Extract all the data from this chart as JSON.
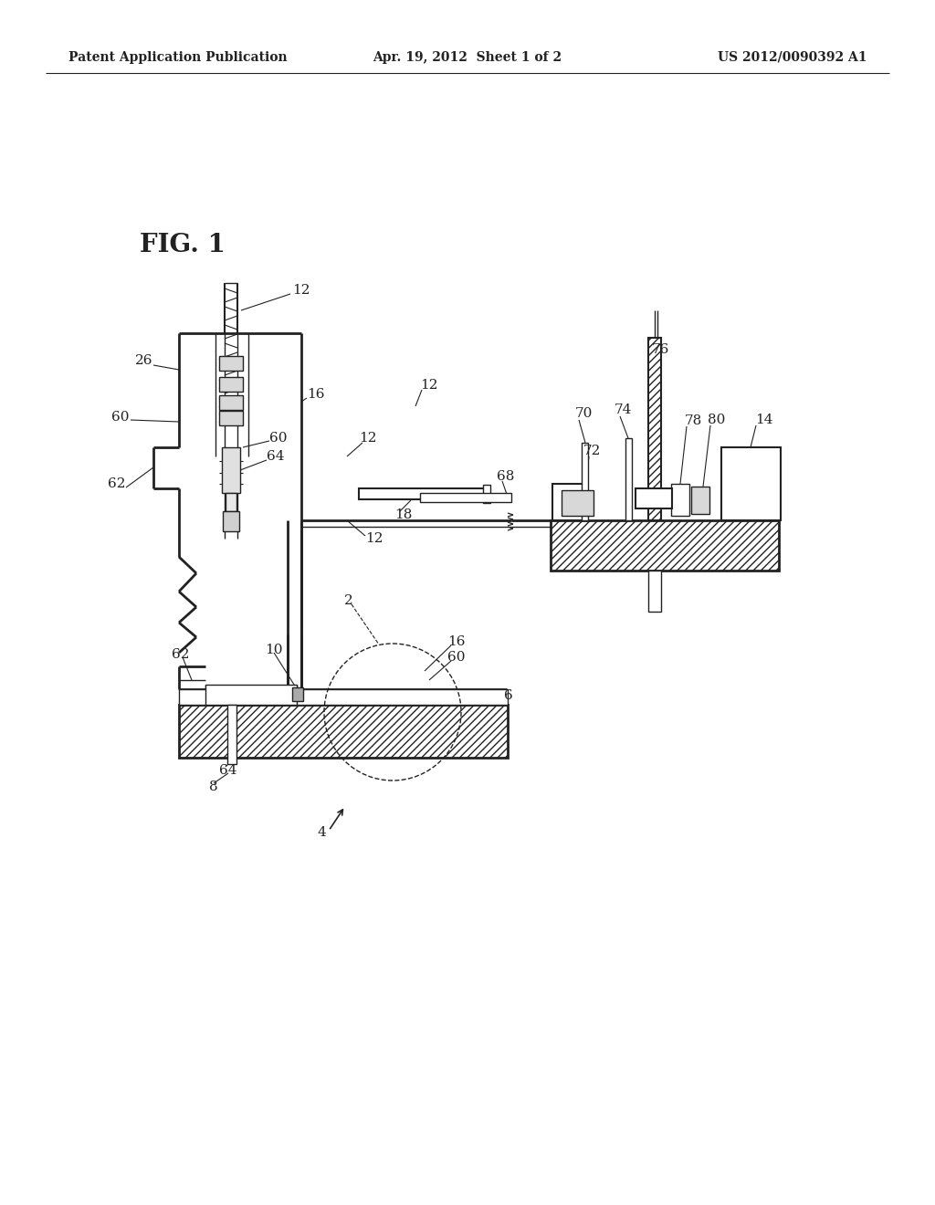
{
  "bg_color": "#ffffff",
  "header_left": "Patent Application Publication",
  "header_center": "Apr. 19, 2012  Sheet 1 of 2",
  "header_right": "US 2012/0090392 A1",
  "fig_label": "FIG. 1",
  "line_color": "#222222",
  "figsize": [
    10.24,
    13.2
  ],
  "dpi": 100
}
